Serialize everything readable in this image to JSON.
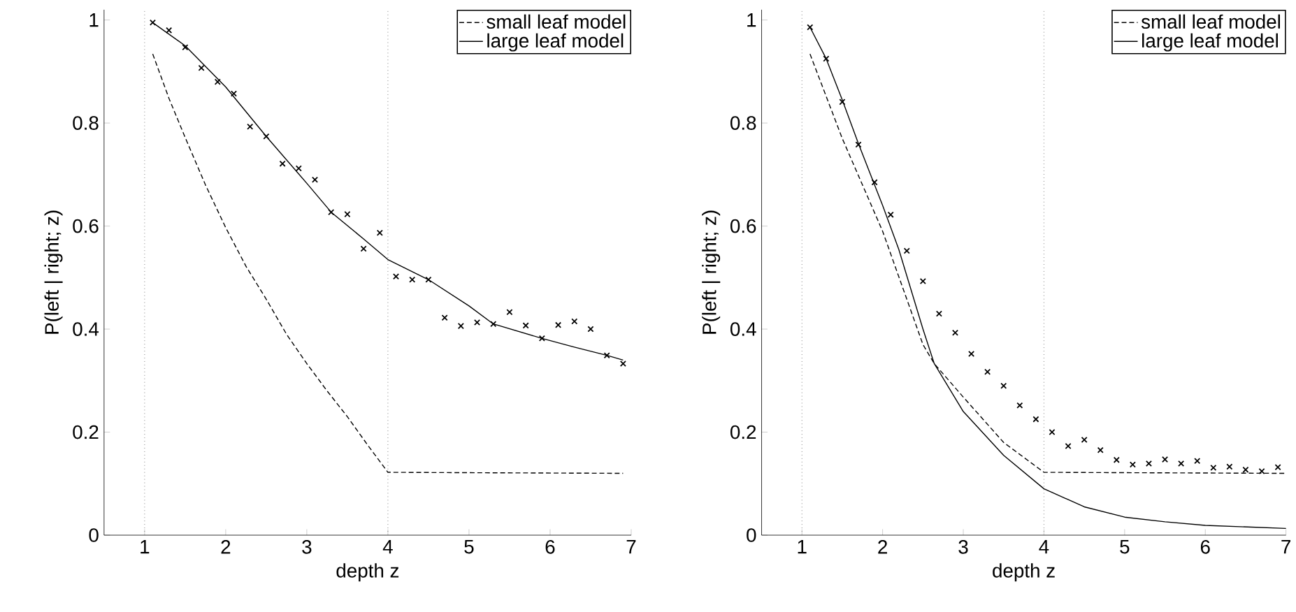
{
  "chart_data": [
    {
      "type": "line",
      "xlabel": "depth   z",
      "ylabel": "P(left | right; z)",
      "xlim": [
        0.5,
        7
      ],
      "ylim": [
        0,
        1.02
      ],
      "xticks": [
        1,
        2,
        3,
        4,
        5,
        6,
        7
      ],
      "yticks": [
        0,
        0.2,
        0.4,
        0.6,
        0.8,
        1
      ],
      "legend": "top right",
      "ref_lines": [
        {
          "axis": "x",
          "value": 1,
          "color": "#808080",
          "line_style": "dotted"
        },
        {
          "axis": "x",
          "value": 4,
          "color": "#808080",
          "line_style": "dotted"
        }
      ],
      "series": [
        {
          "name": "small leaf model",
          "line_style": "dashed",
          "color": "#000000",
          "x": [
            1.1,
            1.3,
            1.5,
            1.75,
            2,
            2.25,
            2.5,
            2.75,
            3,
            3.25,
            3.5,
            3.75,
            4,
            6.9
          ],
          "values": [
            0.934,
            0.848,
            0.772,
            0.68,
            0.597,
            0.522,
            0.458,
            0.39,
            0.333,
            0.28,
            0.23,
            0.175,
            0.122,
            0.12
          ]
        },
        {
          "name": "large leaf model",
          "line_style": "solid",
          "color": "#000000",
          "x": [
            1.1,
            1.5,
            2,
            2.5,
            3,
            3.3,
            3.7,
            4,
            4.5,
            5,
            5.3,
            5.9,
            6.3,
            6.7,
            6.9
          ],
          "values": [
            0.995,
            0.95,
            0.87,
            0.774,
            0.683,
            0.627,
            0.575,
            0.535,
            0.496,
            0.445,
            0.41,
            0.382,
            0.365,
            0.349,
            0.34
          ]
        },
        {
          "type": "scatter",
          "color": "#000000",
          "x": [
            1.1,
            1.3,
            1.5,
            1.7,
            1.9,
            2.1,
            2.3,
            2.5,
            2.7,
            2.9,
            3.1,
            3.3,
            3.5,
            3.7,
            3.9,
            4.1,
            4.3,
            4.5,
            4.7,
            4.9,
            5.1,
            5.3,
            5.5,
            5.7,
            5.9,
            6.1,
            6.3,
            6.5,
            6.7,
            6.9
          ],
          "values": [
            0.995,
            0.98,
            0.947,
            0.907,
            0.88,
            0.857,
            0.793,
            0.774,
            0.721,
            0.712,
            0.69,
            0.627,
            0.623,
            0.556,
            0.587,
            0.502,
            0.496,
            0.496,
            0.422,
            0.406,
            0.413,
            0.41,
            0.433,
            0.407,
            0.382,
            0.408,
            0.415,
            0.4,
            0.349,
            0.333
          ],
          "marker": "cross"
        }
      ]
    },
    {
      "type": "line",
      "xlabel": "depth   z",
      "ylabel": "P(left | right; z)",
      "xlim": [
        0.5,
        7
      ],
      "ylim": [
        0,
        1.02
      ],
      "xticks": [
        1,
        2,
        3,
        4,
        5,
        6,
        7
      ],
      "yticks": [
        0,
        0.2,
        0.4,
        0.6,
        0.8,
        1
      ],
      "legend": "top right",
      "ref_lines": [
        {
          "axis": "x",
          "value": 1,
          "color": "#808080",
          "line_style": "dotted"
        },
        {
          "axis": "x",
          "value": 4,
          "color": "#808080",
          "line_style": "dotted"
        }
      ],
      "series": [
        {
          "name": "small leaf model",
          "line_style": "dashed",
          "color": "#000000",
          "x": [
            1.1,
            1.5,
            2,
            2.5,
            2.64,
            3,
            3.5,
            4,
            7
          ],
          "values": [
            0.934,
            0.77,
            0.59,
            0.37,
            0.333,
            0.268,
            0.18,
            0.122,
            0.12
          ]
        },
        {
          "name": "large leaf model",
          "line_style": "solid",
          "color": "#000000",
          "x": [
            1.1,
            1.3,
            1.5,
            1.7,
            2,
            2.2,
            2.5,
            2.64,
            3,
            3.5,
            4,
            4.5,
            5,
            5.5,
            6,
            7
          ],
          "values": [
            0.986,
            0.925,
            0.845,
            0.76,
            0.64,
            0.555,
            0.4,
            0.333,
            0.24,
            0.155,
            0.09,
            0.055,
            0.035,
            0.026,
            0.019,
            0.013
          ]
        },
        {
          "type": "scatter",
          "color": "#000000",
          "x": [
            1.1,
            1.3,
            1.5,
            1.7,
            1.9,
            2.1,
            2.3,
            2.5,
            2.7,
            2.9,
            3.1,
            3.3,
            3.5,
            3.7,
            3.9,
            4.1,
            4.3,
            4.5,
            4.7,
            4.9,
            5.1,
            5.3,
            5.5,
            5.7,
            5.9,
            6.1,
            6.3,
            6.5,
            6.7,
            6.9
          ],
          "values": [
            0.986,
            0.925,
            0.841,
            0.758,
            0.685,
            0.622,
            0.552,
            0.493,
            0.43,
            0.393,
            0.352,
            0.317,
            0.29,
            0.252,
            0.225,
            0.2,
            0.173,
            0.185,
            0.165,
            0.146,
            0.137,
            0.139,
            0.147,
            0.139,
            0.144,
            0.131,
            0.133,
            0.127,
            0.124,
            0.132
          ],
          "marker": "cross"
        }
      ]
    }
  ]
}
